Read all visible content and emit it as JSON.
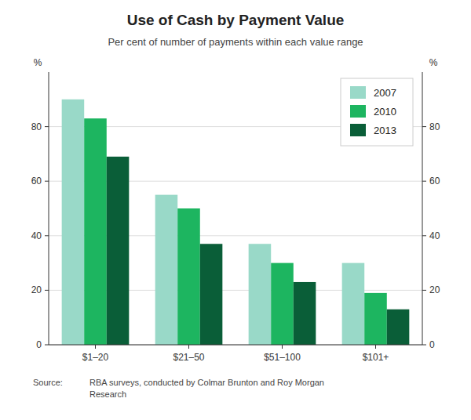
{
  "chart_data": {
    "type": "bar",
    "title": "Use of Cash by Payment Value",
    "subtitle": "Per cent of number of payments within each value range",
    "categories": [
      "$1–20",
      "$21–50",
      "$51–100",
      "$101+"
    ],
    "series": [
      {
        "name": "2007",
        "color": "#99d9c8",
        "values": [
          90,
          55,
          37,
          30
        ]
      },
      {
        "name": "2010",
        "color": "#1db560",
        "values": [
          83,
          50,
          30,
          19
        ]
      },
      {
        "name": "2013",
        "color": "#0a5e38",
        "values": [
          69,
          37,
          23,
          13
        ]
      }
    ],
    "ylim": [
      0,
      100
    ],
    "yticks": [
      0,
      20,
      40,
      60,
      80
    ],
    "y2lim": [
      0,
      100
    ],
    "y2ticks": [
      0,
      20,
      40,
      60,
      80
    ],
    "ylabel": "%",
    "y2label": "%",
    "grid": true,
    "legend": "upper right",
    "source_label": "Source:",
    "source": "RBA surveys, conducted by Colmar Brunton and Roy Morgan\nResearch"
  }
}
